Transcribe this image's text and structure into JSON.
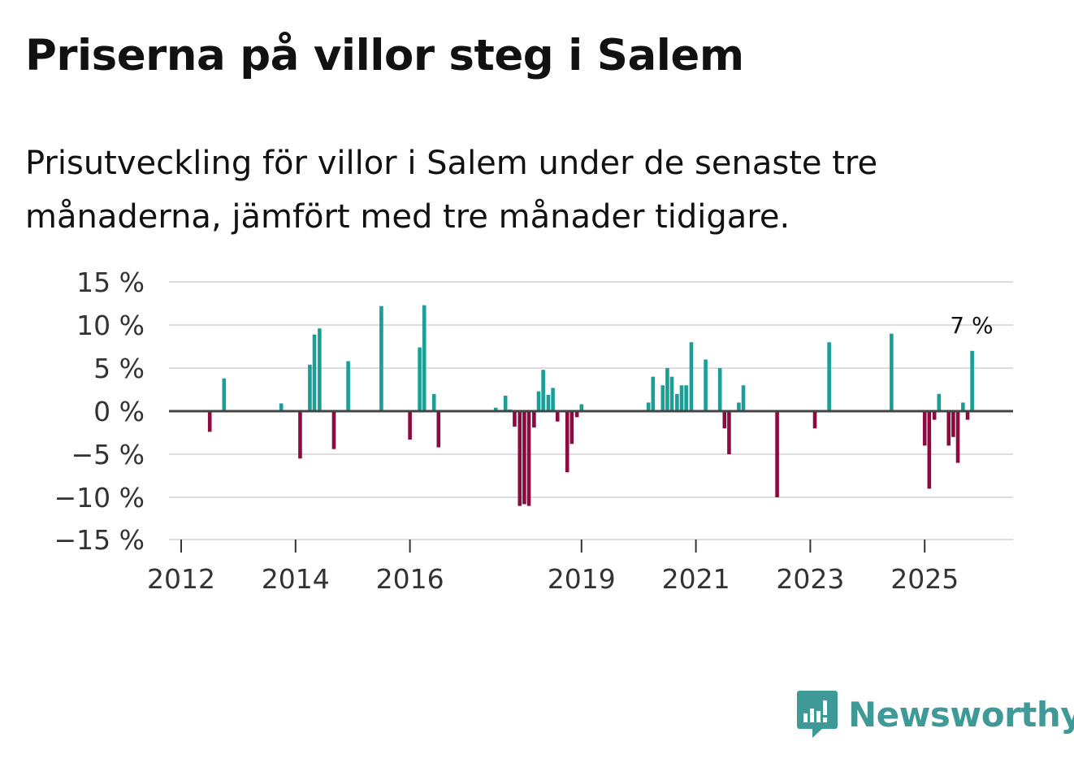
{
  "chart_data": {
    "type": "bar",
    "title": "Priserna på villor steg i Salem",
    "subtitle": "Prisutveckling för villor i Salem under de senaste tre månaderna, jämfört med tre månader tidigare.",
    "ylim": [
      -15,
      15
    ],
    "y_ticks": [
      {
        "value": 15,
        "label": "15 %"
      },
      {
        "value": 10,
        "label": "10 %"
      },
      {
        "value": 5,
        "label": "5 %"
      },
      {
        "value": 0,
        "label": "0 %"
      },
      {
        "value": -5,
        "label": "−5 %"
      },
      {
        "value": -10,
        "label": "−10 %"
      },
      {
        "value": -15,
        "label": "−15 %"
      }
    ],
    "x_ticks": [
      {
        "year": 2012,
        "label": "2012"
      },
      {
        "year": 2014,
        "label": "2014"
      },
      {
        "year": 2016,
        "label": "2016"
      },
      {
        "year": 2019,
        "label": "2019"
      },
      {
        "year": 2021,
        "label": "2021"
      },
      {
        "year": 2023,
        "label": "2023"
      },
      {
        "year": 2025,
        "label": "2025"
      }
    ],
    "x_range": [
      2011.9,
      2026.55
    ],
    "grid": true,
    "colors": {
      "positive": "#1a9e96",
      "negative": "#8c0a3f",
      "zero_line": "#444444",
      "grid": "#dddddd"
    },
    "bars": [
      {
        "t": 2012.5,
        "v": -2.4
      },
      {
        "t": 2012.75,
        "v": 3.8
      },
      {
        "t": 2013.75,
        "v": 0.9
      },
      {
        "t": 2014.08,
        "v": -5.5
      },
      {
        "t": 2014.25,
        "v": 5.4
      },
      {
        "t": 2014.33,
        "v": 8.9
      },
      {
        "t": 2014.42,
        "v": 9.6
      },
      {
        "t": 2014.67,
        "v": -4.4
      },
      {
        "t": 2014.92,
        "v": 5.8
      },
      {
        "t": 2015.5,
        "v": 12.2
      },
      {
        "t": 2016.0,
        "v": -3.3
      },
      {
        "t": 2016.17,
        "v": 7.4
      },
      {
        "t": 2016.25,
        "v": 12.3
      },
      {
        "t": 2016.42,
        "v": 2.0
      },
      {
        "t": 2016.5,
        "v": -4.2
      },
      {
        "t": 2017.5,
        "v": 0.4
      },
      {
        "t": 2017.67,
        "v": 1.8
      },
      {
        "t": 2017.75,
        "v": 0.2
      },
      {
        "t": 2017.83,
        "v": -1.8
      },
      {
        "t": 2017.92,
        "v": -11.0
      },
      {
        "t": 2018.0,
        "v": -10.8
      },
      {
        "t": 2018.08,
        "v": -11.0
      },
      {
        "t": 2018.17,
        "v": -1.9
      },
      {
        "t": 2018.25,
        "v": 2.3
      },
      {
        "t": 2018.33,
        "v": 4.8
      },
      {
        "t": 2018.42,
        "v": 1.9
      },
      {
        "t": 2018.5,
        "v": 2.7
      },
      {
        "t": 2018.58,
        "v": -1.2
      },
      {
        "t": 2018.75,
        "v": -7.1
      },
      {
        "t": 2018.83,
        "v": -3.8
      },
      {
        "t": 2018.92,
        "v": -0.7
      },
      {
        "t": 2019.0,
        "v": 0.8
      },
      {
        "t": 2020.17,
        "v": 1.0
      },
      {
        "t": 2020.25,
        "v": 4.0
      },
      {
        "t": 2020.42,
        "v": 3.0
      },
      {
        "t": 2020.5,
        "v": 5.0
      },
      {
        "t": 2020.58,
        "v": 4.0
      },
      {
        "t": 2020.67,
        "v": 2.0
      },
      {
        "t": 2020.75,
        "v": 3.0
      },
      {
        "t": 2020.83,
        "v": 3.0
      },
      {
        "t": 2020.92,
        "v": 8.0
      },
      {
        "t": 2021.17,
        "v": 6.0
      },
      {
        "t": 2021.42,
        "v": 5.0
      },
      {
        "t": 2021.5,
        "v": -2.0
      },
      {
        "t": 2021.58,
        "v": -5.0
      },
      {
        "t": 2021.75,
        "v": 1.0
      },
      {
        "t": 2021.83,
        "v": 3.0
      },
      {
        "t": 2022.42,
        "v": -10.0
      },
      {
        "t": 2023.08,
        "v": -2.0
      },
      {
        "t": 2023.33,
        "v": 8.0
      },
      {
        "t": 2024.42,
        "v": 9.0
      },
      {
        "t": 2025.0,
        "v": -4.0
      },
      {
        "t": 2025.08,
        "v": -9.0
      },
      {
        "t": 2025.17,
        "v": -1.0
      },
      {
        "t": 2025.25,
        "v": 2.0
      },
      {
        "t": 2025.42,
        "v": -4.0
      },
      {
        "t": 2025.5,
        "v": -3.0
      },
      {
        "t": 2025.58,
        "v": -6.0
      },
      {
        "t": 2025.67,
        "v": 1.0
      },
      {
        "t": 2025.75,
        "v": -1.0
      },
      {
        "t": 2025.83,
        "v": 7.0
      }
    ],
    "annotation": {
      "t": 2025.83,
      "v": 7.0,
      "label": "7 %"
    }
  },
  "brand": {
    "name": "Newsworthy",
    "icon": "newsworthy-logo-icon",
    "color": "#3f9a97"
  }
}
